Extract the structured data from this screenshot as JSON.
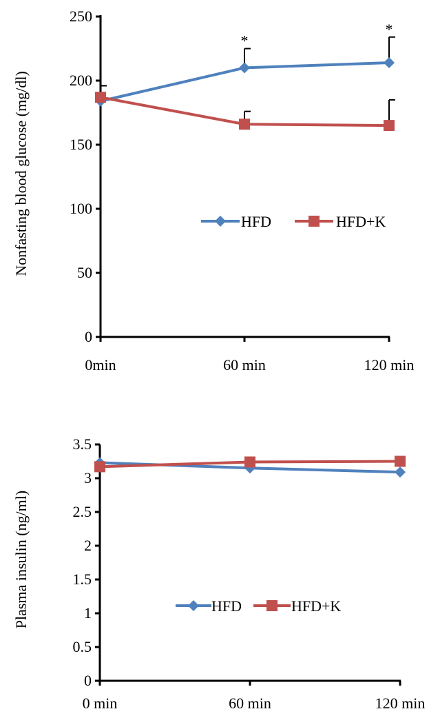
{
  "chart_data": [
    {
      "type": "line",
      "title": "",
      "xlabel": "",
      "ylabel": "Nonfasting blood glucose (mg/dl)",
      "categories": [
        "0min",
        "60 min",
        "120 min"
      ],
      "ylim": [
        0,
        250
      ],
      "yticks": [
        "0",
        "50",
        "100",
        "150",
        "200",
        "250"
      ],
      "grid": false,
      "legend_position": "center-right",
      "series": [
        {
          "name": "HFD",
          "color": "#4F81BD",
          "marker": "diamond",
          "values": [
            184,
            210,
            214
          ],
          "error_plus": [
            12,
            15,
            20
          ],
          "significance": [
            "",
            "*",
            "*"
          ]
        },
        {
          "name": "HFD+K",
          "color": "#C0504D",
          "marker": "square",
          "values": [
            187,
            166,
            165
          ],
          "error_plus": [
            9,
            10,
            20
          ],
          "significance": [
            "",
            "",
            ""
          ]
        }
      ]
    },
    {
      "type": "line",
      "title": "",
      "xlabel": "",
      "ylabel": "Plasma insulin (ng/ml)",
      "categories": [
        "0 min",
        "60 min",
        "120 min"
      ],
      "ylim": [
        0,
        3.5
      ],
      "yticks": [
        "0",
        "0.5",
        "1",
        "1.5",
        "2",
        "2.5",
        "3",
        "3.5"
      ],
      "grid": false,
      "legend_position": "center-right",
      "series": [
        {
          "name": "HFD",
          "color": "#4F81BD",
          "marker": "diamond",
          "values": [
            3.23,
            3.15,
            3.09
          ]
        },
        {
          "name": "HFD+K",
          "color": "#C0504D",
          "marker": "square",
          "values": [
            3.17,
            3.24,
            3.25
          ]
        }
      ]
    }
  ]
}
